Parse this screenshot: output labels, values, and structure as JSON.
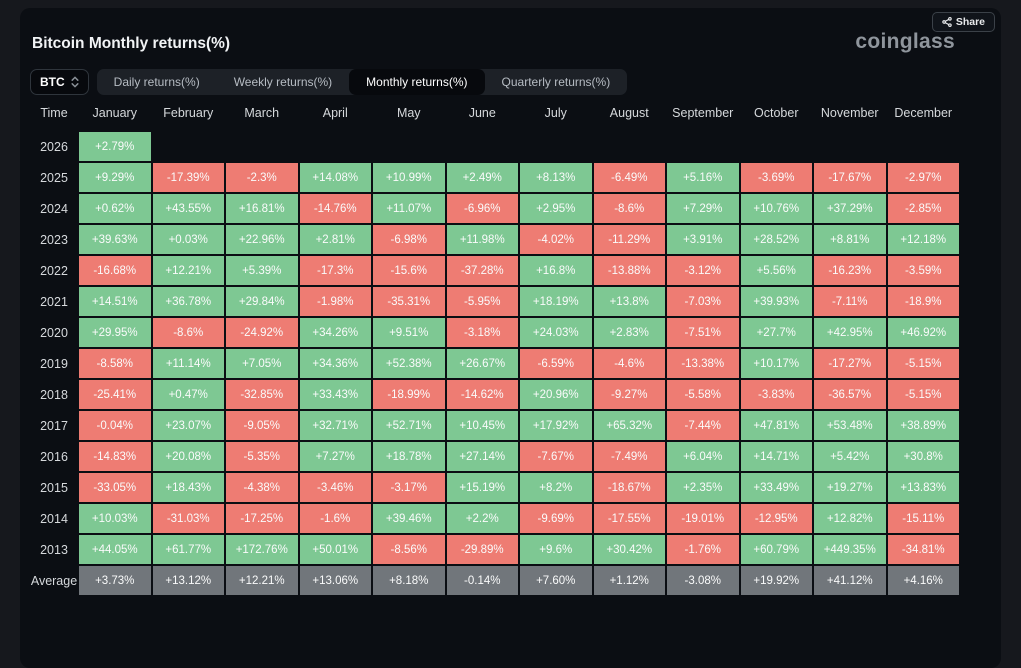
{
  "header": {
    "title": "Bitcoin Monthly returns(%)",
    "logo": "coinglass",
    "share_label": "Share"
  },
  "controls": {
    "symbol": "BTC",
    "tabs": [
      {
        "label": "Daily returns(%)",
        "active": false
      },
      {
        "label": "Weekly returns(%)",
        "active": false
      },
      {
        "label": "Monthly returns(%)",
        "active": true
      },
      {
        "label": "Quarterly returns(%)",
        "active": false
      }
    ]
  },
  "colors": {
    "positive": "#7ec893",
    "negative": "#ee7c73",
    "average": "#71767b"
  },
  "table": {
    "time_header": "Time",
    "months": [
      "January",
      "February",
      "March",
      "April",
      "May",
      "June",
      "July",
      "August",
      "September",
      "October",
      "November",
      "December"
    ],
    "rows": [
      {
        "year": "2026",
        "values": [
          "+2.79%",
          null,
          null,
          null,
          null,
          null,
          null,
          null,
          null,
          null,
          null,
          null
        ]
      },
      {
        "year": "2025",
        "values": [
          "+9.29%",
          "-17.39%",
          "-2.3%",
          "+14.08%",
          "+10.99%",
          "+2.49%",
          "+8.13%",
          "-6.49%",
          "+5.16%",
          "-3.69%",
          "-17.67%",
          "-2.97%"
        ]
      },
      {
        "year": "2024",
        "values": [
          "+0.62%",
          "+43.55%",
          "+16.81%",
          "-14.76%",
          "+11.07%",
          "-6.96%",
          "+2.95%",
          "-8.6%",
          "+7.29%",
          "+10.76%",
          "+37.29%",
          "-2.85%"
        ]
      },
      {
        "year": "2023",
        "values": [
          "+39.63%",
          "+0.03%",
          "+22.96%",
          "+2.81%",
          "-6.98%",
          "+11.98%",
          "-4.02%",
          "-11.29%",
          "+3.91%",
          "+28.52%",
          "+8.81%",
          "+12.18%"
        ]
      },
      {
        "year": "2022",
        "values": [
          "-16.68%",
          "+12.21%",
          "+5.39%",
          "-17.3%",
          "-15.6%",
          "-37.28%",
          "+16.8%",
          "-13.88%",
          "-3.12%",
          "+5.56%",
          "-16.23%",
          "-3.59%"
        ]
      },
      {
        "year": "2021",
        "values": [
          "+14.51%",
          "+36.78%",
          "+29.84%",
          "-1.98%",
          "-35.31%",
          "-5.95%",
          "+18.19%",
          "+13.8%",
          "-7.03%",
          "+39.93%",
          "-7.11%",
          "-18.9%"
        ]
      },
      {
        "year": "2020",
        "values": [
          "+29.95%",
          "-8.6%",
          "-24.92%",
          "+34.26%",
          "+9.51%",
          "-3.18%",
          "+24.03%",
          "+2.83%",
          "-7.51%",
          "+27.7%",
          "+42.95%",
          "+46.92%"
        ]
      },
      {
        "year": "2019",
        "values": [
          "-8.58%",
          "+11.14%",
          "+7.05%",
          "+34.36%",
          "+52.38%",
          "+26.67%",
          "-6.59%",
          "-4.6%",
          "-13.38%",
          "+10.17%",
          "-17.27%",
          "-5.15%"
        ]
      },
      {
        "year": "2018",
        "values": [
          "-25.41%",
          "+0.47%",
          "-32.85%",
          "+33.43%",
          "-18.99%",
          "-14.62%",
          "+20.96%",
          "-9.27%",
          "-5.58%",
          "-3.83%",
          "-36.57%",
          "-5.15%"
        ]
      },
      {
        "year": "2017",
        "values": [
          "-0.04%",
          "+23.07%",
          "-9.05%",
          "+32.71%",
          "+52.71%",
          "+10.45%",
          "+17.92%",
          "+65.32%",
          "-7.44%",
          "+47.81%",
          "+53.48%",
          "+38.89%"
        ]
      },
      {
        "year": "2016",
        "values": [
          "-14.83%",
          "+20.08%",
          "-5.35%",
          "+7.27%",
          "+18.78%",
          "+27.14%",
          "-7.67%",
          "-7.49%",
          "+6.04%",
          "+14.71%",
          "+5.42%",
          "+30.8%"
        ]
      },
      {
        "year": "2015",
        "values": [
          "-33.05%",
          "+18.43%",
          "-4.38%",
          "-3.46%",
          "-3.17%",
          "+15.19%",
          "+8.2%",
          "-18.67%",
          "+2.35%",
          "+33.49%",
          "+19.27%",
          "+13.83%"
        ]
      },
      {
        "year": "2014",
        "values": [
          "+10.03%",
          "-31.03%",
          "-17.25%",
          "-1.6%",
          "+39.46%",
          "+2.2%",
          "-9.69%",
          "-17.55%",
          "-19.01%",
          "-12.95%",
          "+12.82%",
          "-15.11%"
        ]
      },
      {
        "year": "2013",
        "values": [
          "+44.05%",
          "+61.77%",
          "+172.76%",
          "+50.01%",
          "-8.56%",
          "-29.89%",
          "+9.6%",
          "+30.42%",
          "-1.76%",
          "+60.79%",
          "+449.35%",
          "-34.81%"
        ]
      },
      {
        "year": "Average",
        "values": [
          "+3.73%",
          "+13.12%",
          "+12.21%",
          "+13.06%",
          "+8.18%",
          "-0.14%",
          "+7.60%",
          "+1.12%",
          "-3.08%",
          "+19.92%",
          "+41.12%",
          "+4.16%"
        ]
      }
    ]
  },
  "chart_data": {
    "type": "heatmap",
    "title": "Bitcoin Monthly returns(%)",
    "unit": "%",
    "x_categories": [
      "January",
      "February",
      "March",
      "April",
      "May",
      "June",
      "July",
      "August",
      "September",
      "October",
      "November",
      "December"
    ],
    "y_categories": [
      "2026",
      "2025",
      "2024",
      "2023",
      "2022",
      "2021",
      "2020",
      "2019",
      "2018",
      "2017",
      "2016",
      "2015",
      "2014",
      "2013",
      "Average"
    ],
    "values": [
      [
        2.79,
        null,
        null,
        null,
        null,
        null,
        null,
        null,
        null,
        null,
        null,
        null
      ],
      [
        9.29,
        -17.39,
        -2.3,
        14.08,
        10.99,
        2.49,
        8.13,
        -6.49,
        5.16,
        -3.69,
        -17.67,
        -2.97
      ],
      [
        0.62,
        43.55,
        16.81,
        -14.76,
        11.07,
        -6.96,
        2.95,
        -8.6,
        7.29,
        10.76,
        37.29,
        -2.85
      ],
      [
        39.63,
        0.03,
        22.96,
        2.81,
        -6.98,
        11.98,
        -4.02,
        -11.29,
        3.91,
        28.52,
        8.81,
        12.18
      ],
      [
        -16.68,
        12.21,
        5.39,
        -17.3,
        -15.6,
        -37.28,
        16.8,
        -13.88,
        -3.12,
        5.56,
        -16.23,
        -3.59
      ],
      [
        14.51,
        36.78,
        29.84,
        -1.98,
        -35.31,
        -5.95,
        18.19,
        13.8,
        -7.03,
        39.93,
        -7.11,
        -18.9
      ],
      [
        29.95,
        -8.6,
        -24.92,
        34.26,
        9.51,
        -3.18,
        24.03,
        2.83,
        -7.51,
        27.7,
        42.95,
        46.92
      ],
      [
        -8.58,
        11.14,
        7.05,
        34.36,
        52.38,
        26.67,
        -6.59,
        -4.6,
        -13.38,
        10.17,
        -17.27,
        -5.15
      ],
      [
        -25.41,
        0.47,
        -32.85,
        33.43,
        -18.99,
        -14.62,
        20.96,
        -9.27,
        -5.58,
        -3.83,
        -36.57,
        -5.15
      ],
      [
        -0.04,
        23.07,
        -9.05,
        32.71,
        52.71,
        10.45,
        17.92,
        65.32,
        -7.44,
        47.81,
        53.48,
        38.89
      ],
      [
        -14.83,
        20.08,
        -5.35,
        7.27,
        18.78,
        27.14,
        -7.67,
        -7.49,
        6.04,
        14.71,
        5.42,
        30.8
      ],
      [
        -33.05,
        18.43,
        -4.38,
        -3.46,
        -3.17,
        15.19,
        8.2,
        -18.67,
        2.35,
        33.49,
        19.27,
        13.83
      ],
      [
        10.03,
        -31.03,
        -17.25,
        -1.6,
        39.46,
        2.2,
        -9.69,
        -17.55,
        -19.01,
        -12.95,
        12.82,
        -15.11
      ],
      [
        44.05,
        61.77,
        172.76,
        50.01,
        -8.56,
        -29.89,
        9.6,
        30.42,
        -1.76,
        60.79,
        449.35,
        -34.81
      ],
      [
        3.73,
        13.12,
        12.21,
        13.06,
        8.18,
        -0.14,
        7.6,
        1.12,
        -3.08,
        19.92,
        41.12,
        4.16
      ]
    ],
    "color_rule": "positive=green, negative=red, Average row=gray",
    "legend": "none",
    "grid": "cell borders dark"
  }
}
